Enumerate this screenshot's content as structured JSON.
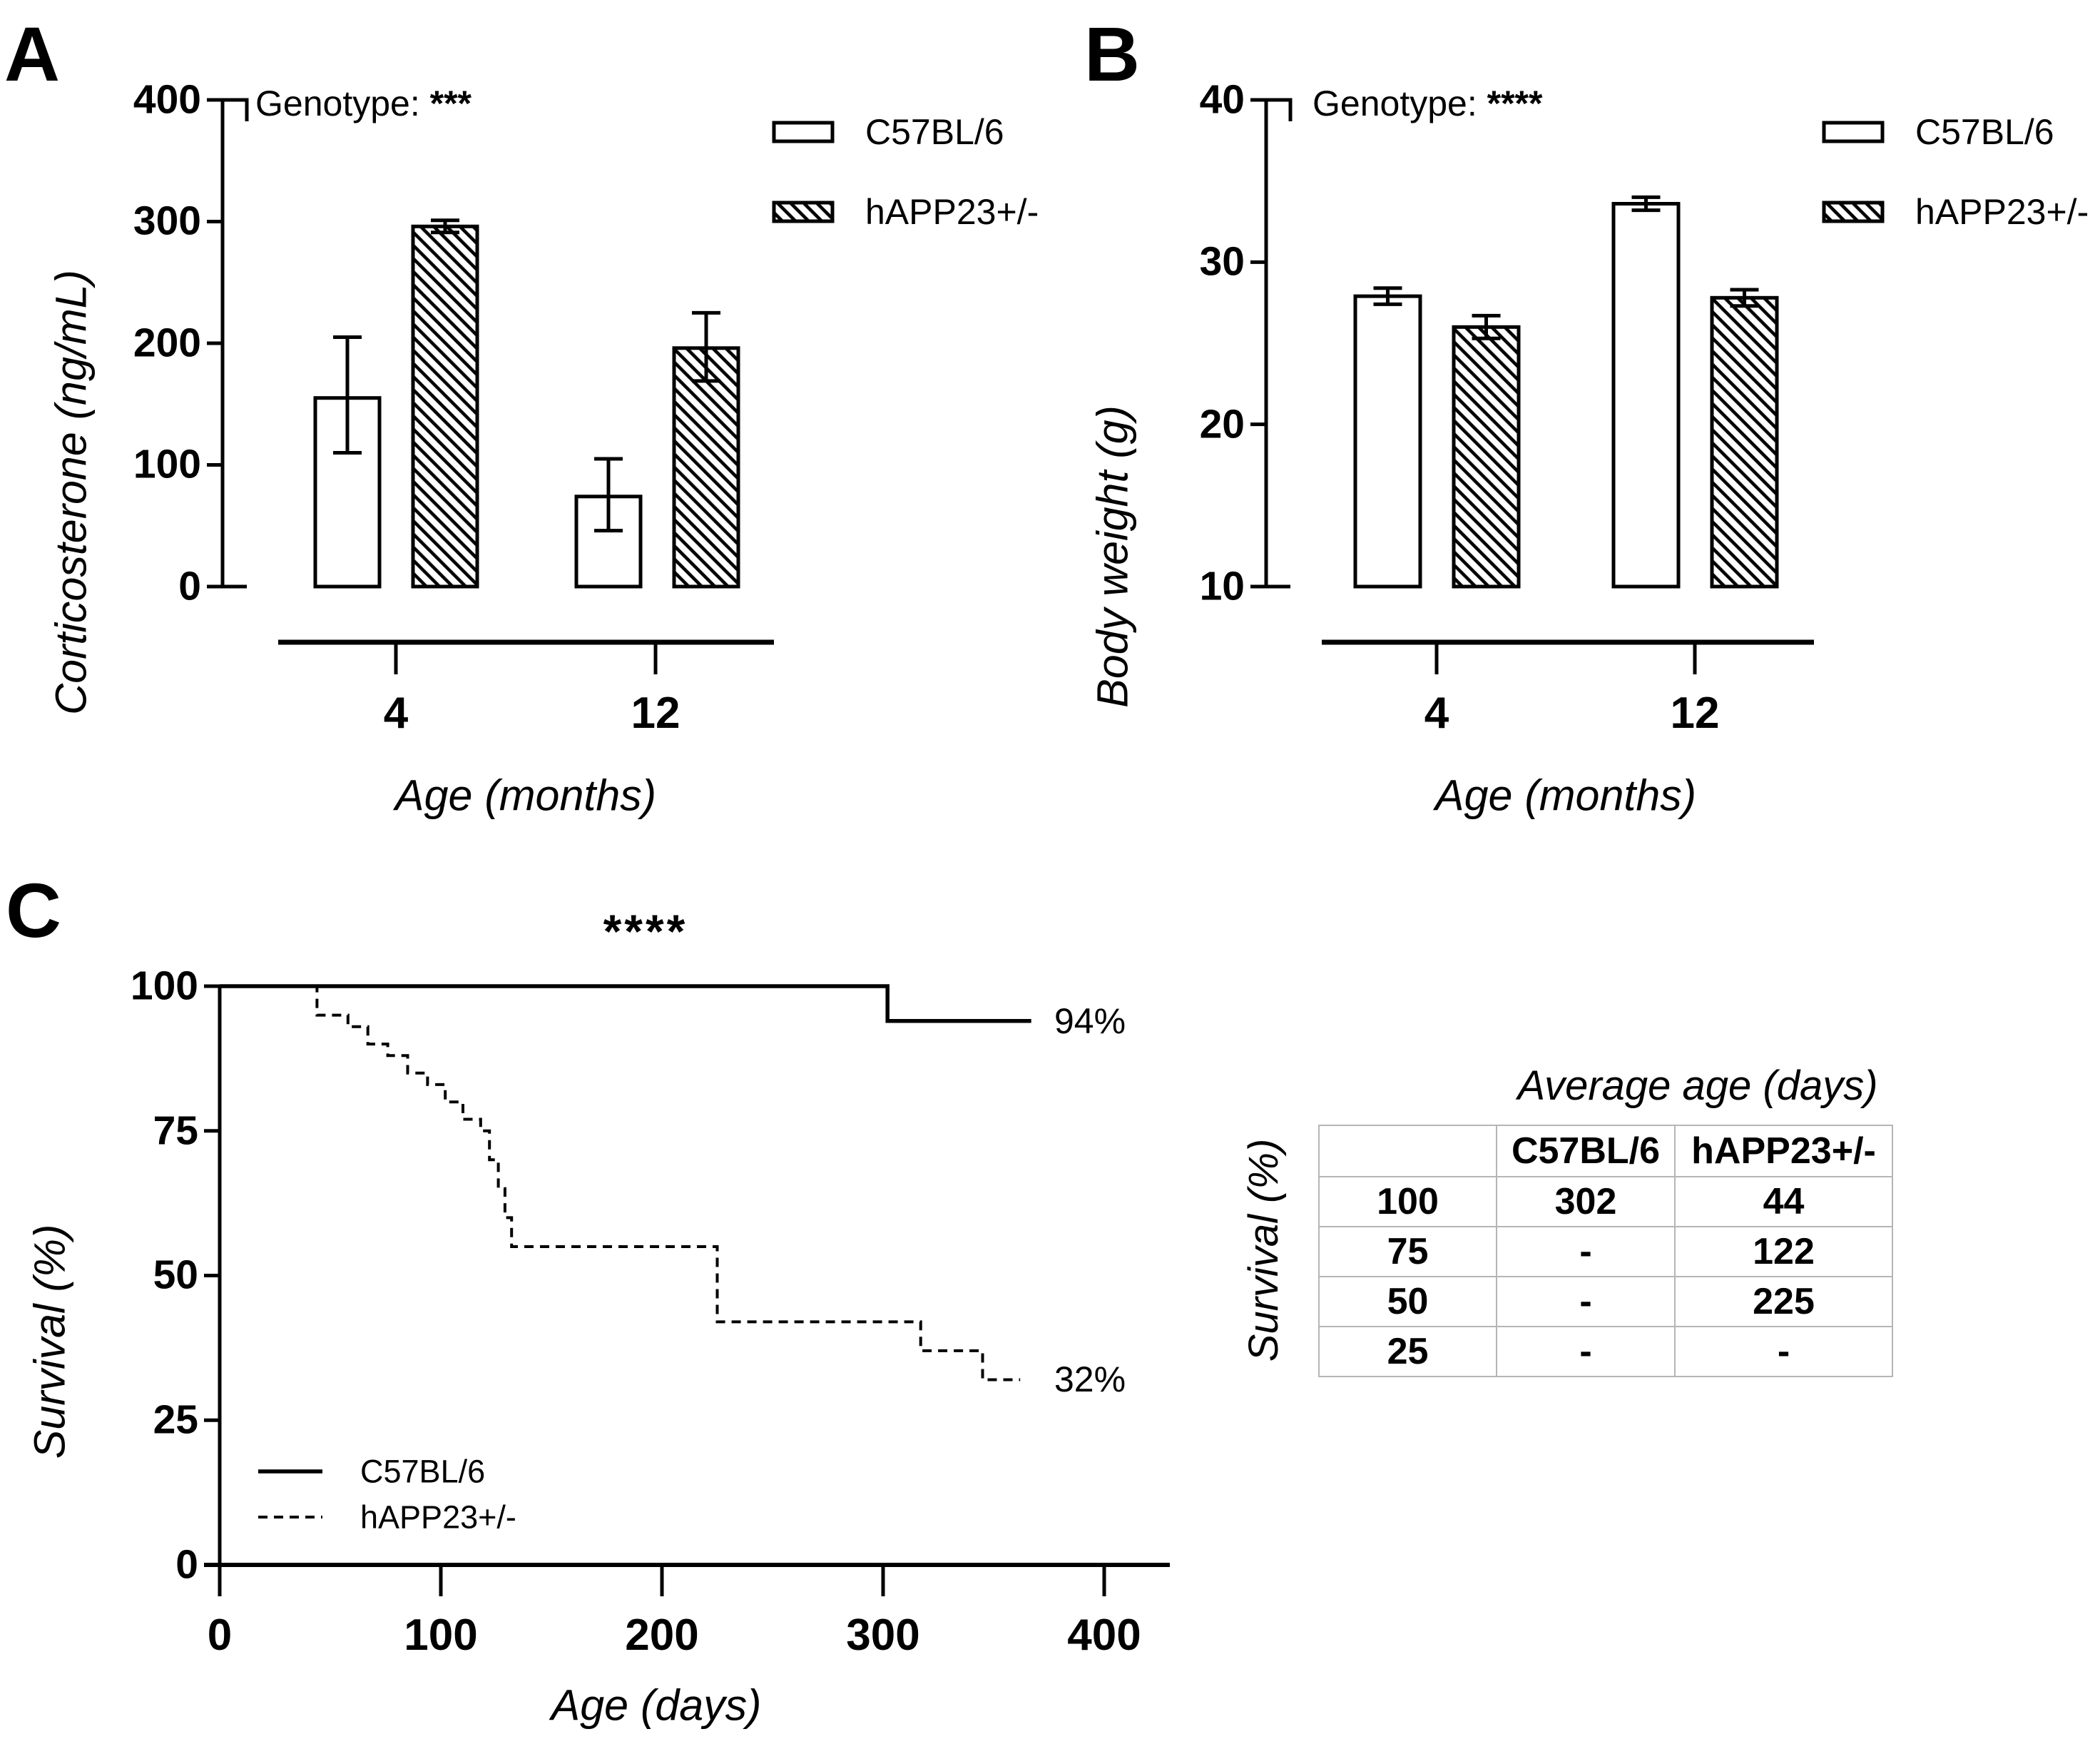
{
  "panels": {
    "A": {
      "label": "A"
    },
    "B": {
      "label": "B"
    },
    "C": {
      "label": "C"
    }
  },
  "chart_data": [
    {
      "id": "A",
      "type": "bar",
      "title_annotation": {
        "prefix": "Genotype: ",
        "stars": "***"
      },
      "categories": [
        "4",
        "12"
      ],
      "xlabel": "Age (months)",
      "ylabel": "Corticosterone (ng/mL)",
      "ylim": [
        0,
        400
      ],
      "yticks": [
        0,
        100,
        200,
        300,
        400
      ],
      "legend_position": "top-right",
      "series": [
        {
          "name": "C57BL/6",
          "style": "open",
          "values": [
            {
              "mean": 155,
              "err_lo": 110,
              "err_hi": 205
            },
            {
              "mean": 74,
              "err_lo": 46,
              "err_hi": 105
            }
          ]
        },
        {
          "name": "hAPP23+/-",
          "style": "hatched",
          "values": [
            {
              "mean": 296,
              "err_lo": 291,
              "err_hi": 301
            },
            {
              "mean": 196,
              "err_lo": 169,
              "err_hi": 225
            }
          ]
        }
      ]
    },
    {
      "id": "B",
      "type": "bar",
      "title_annotation": {
        "prefix": "Genotype: ",
        "stars": "****"
      },
      "categories": [
        "4",
        "12"
      ],
      "xlabel": "Age (months)",
      "ylabel": "Body weight (g)",
      "ylim": [
        10,
        40
      ],
      "yticks": [
        10,
        20,
        30,
        40
      ],
      "legend_position": "top-right",
      "series": [
        {
          "name": "C57BL/6",
          "style": "open",
          "values": [
            {
              "mean": 27.9,
              "err_lo": 27.4,
              "err_hi": 28.4
            },
            {
              "mean": 33.6,
              "err_lo": 33.2,
              "err_hi": 34
            }
          ]
        },
        {
          "name": "hAPP23+/-",
          "style": "hatched",
          "values": [
            {
              "mean": 26,
              "err_lo": 25.3,
              "err_hi": 26.7
            },
            {
              "mean": 27.8,
              "err_lo": 27.3,
              "err_hi": 28.3
            }
          ]
        }
      ]
    },
    {
      "id": "C",
      "type": "line",
      "subtype": "kaplan-meier-step",
      "annotation_stars": "****",
      "xlabel": "Age (days)",
      "ylabel": "Survival (%)",
      "xlim": [
        0,
        400
      ],
      "xticks": [
        0,
        100,
        200,
        300,
        400
      ],
      "ylim": [
        0,
        100
      ],
      "yticks": [
        0,
        25,
        50,
        75,
        100
      ],
      "legend_position": "inside-lower-left",
      "series": [
        {
          "name": "C57BL/6",
          "style": "solid",
          "end_label": "94%",
          "points": [
            [
              0,
              100
            ],
            [
              302,
              100
            ],
            [
              302,
              94
            ],
            [
              367,
              94
            ]
          ]
        },
        {
          "name": "hAPP23+/-",
          "style": "dashed",
          "end_label": "32%",
          "points": [
            [
              0,
              100
            ],
            [
              44,
              100
            ],
            [
              44,
              95
            ],
            [
              58,
              95
            ],
            [
              58,
              93
            ],
            [
              67,
              93
            ],
            [
              67,
              90
            ],
            [
              76,
              90
            ],
            [
              76,
              88
            ],
            [
              85,
              88
            ],
            [
              85,
              85
            ],
            [
              94,
              85
            ],
            [
              94,
              83
            ],
            [
              102,
              83
            ],
            [
              102,
              80
            ],
            [
              110,
              80
            ],
            [
              110,
              77
            ],
            [
              118,
              77
            ],
            [
              118,
              75
            ],
            [
              122,
              75
            ],
            [
              122,
              70
            ],
            [
              126,
              70
            ],
            [
              126,
              65
            ],
            [
              129,
              65
            ],
            [
              129,
              60
            ],
            [
              132,
              60
            ],
            [
              132,
              55
            ],
            [
              225,
              55
            ],
            [
              225,
              42
            ],
            [
              317,
              42
            ],
            [
              317,
              37
            ],
            [
              345,
              37
            ],
            [
              345,
              32
            ],
            [
              362,
              32
            ]
          ]
        }
      ]
    }
  ],
  "table": {
    "title": "Average age (days)",
    "row_axis_label": "Survival (%)",
    "col_headers": [
      "",
      "C57BL/6",
      "hAPP23+/-"
    ],
    "rows": [
      {
        "survival": "100",
        "c57bl6": "302",
        "happ23": "44"
      },
      {
        "survival": "75",
        "c57bl6": "-",
        "happ23": "122"
      },
      {
        "survival": "50",
        "c57bl6": "-",
        "happ23": "225"
      },
      {
        "survival": "25",
        "c57bl6": "-",
        "happ23": "-"
      }
    ]
  }
}
